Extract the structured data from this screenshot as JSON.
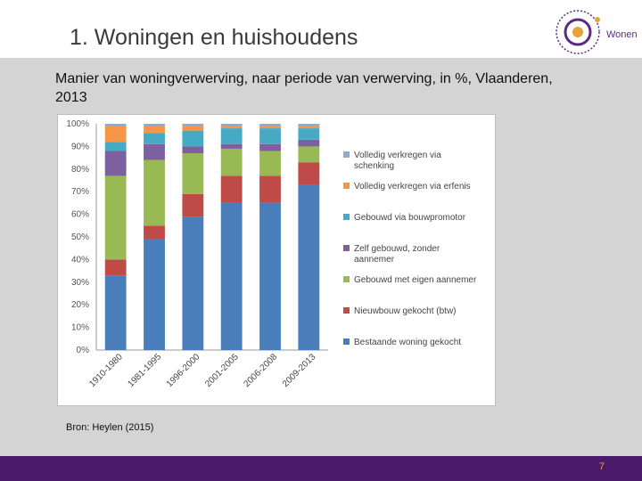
{
  "slide": {
    "title": "1. Woningen en huishoudens",
    "subtitle": "Manier van woningverwerving, naar periode van verwerving, in %, Vlaanderen, 2013",
    "source": "Bron: Heylen (2015)",
    "page_number": "7",
    "logo_text": "Wonen"
  },
  "colors": {
    "background_band": "#d4d4d4",
    "footer": "#4c1a6b",
    "page_number": "#e8a23a"
  },
  "chart_data": {
    "type": "bar",
    "stacked": true,
    "categories": [
      "1910-1980",
      "1981-1995",
      "1996-2000",
      "2001-2005",
      "2006-2008",
      "2009-2013"
    ],
    "y_ticks": [
      "0%",
      "10%",
      "20%",
      "30%",
      "40%",
      "50%",
      "60%",
      "70%",
      "80%",
      "90%",
      "100%"
    ],
    "ylim": [
      0,
      100
    ],
    "legend_position": "right",
    "series": [
      {
        "name": "Bestaande woning gekocht",
        "color": "#4a7ebb",
        "values": [
          33,
          49,
          59,
          65,
          65,
          73
        ]
      },
      {
        "name": "Nieuwbouw gekocht (btw)",
        "color": "#be4b48",
        "values": [
          7,
          6,
          10,
          12,
          12,
          10
        ]
      },
      {
        "name": "Gebouwd met eigen aannemer",
        "color": "#98b954",
        "values": [
          37,
          29,
          18,
          12,
          11,
          7
        ]
      },
      {
        "name": "Zelf gebouwd, zonder aannemer",
        "color": "#7d60a0",
        "values": [
          11,
          7,
          3,
          2,
          3,
          3
        ]
      },
      {
        "name": "Gebouwd via bouwpromotor",
        "color": "#46aac5",
        "values": [
          4,
          5,
          7,
          7,
          7,
          5
        ]
      },
      {
        "name": "Volledig verkregen via erfenis",
        "color": "#f79646",
        "values": [
          7,
          3,
          2,
          1,
          1,
          1
        ]
      },
      {
        "name": "Volledig verkregen via schenking",
        "color": "#92a9cf",
        "values": [
          1,
          1,
          1,
          1,
          1,
          1
        ]
      }
    ],
    "legend_lines": [
      [
        "Volledig verkregen via",
        "schenking"
      ],
      [
        "Volledig verkregen via erfenis"
      ],
      [
        "Gebouwd via bouwpromotor"
      ],
      [
        "Zelf gebouwd, zonder",
        "aannemer"
      ],
      [
        "Gebouwd met eigen aannemer"
      ],
      [
        "Nieuwbouw gekocht (btw)"
      ],
      [
        "Bestaande woning gekocht"
      ]
    ]
  }
}
